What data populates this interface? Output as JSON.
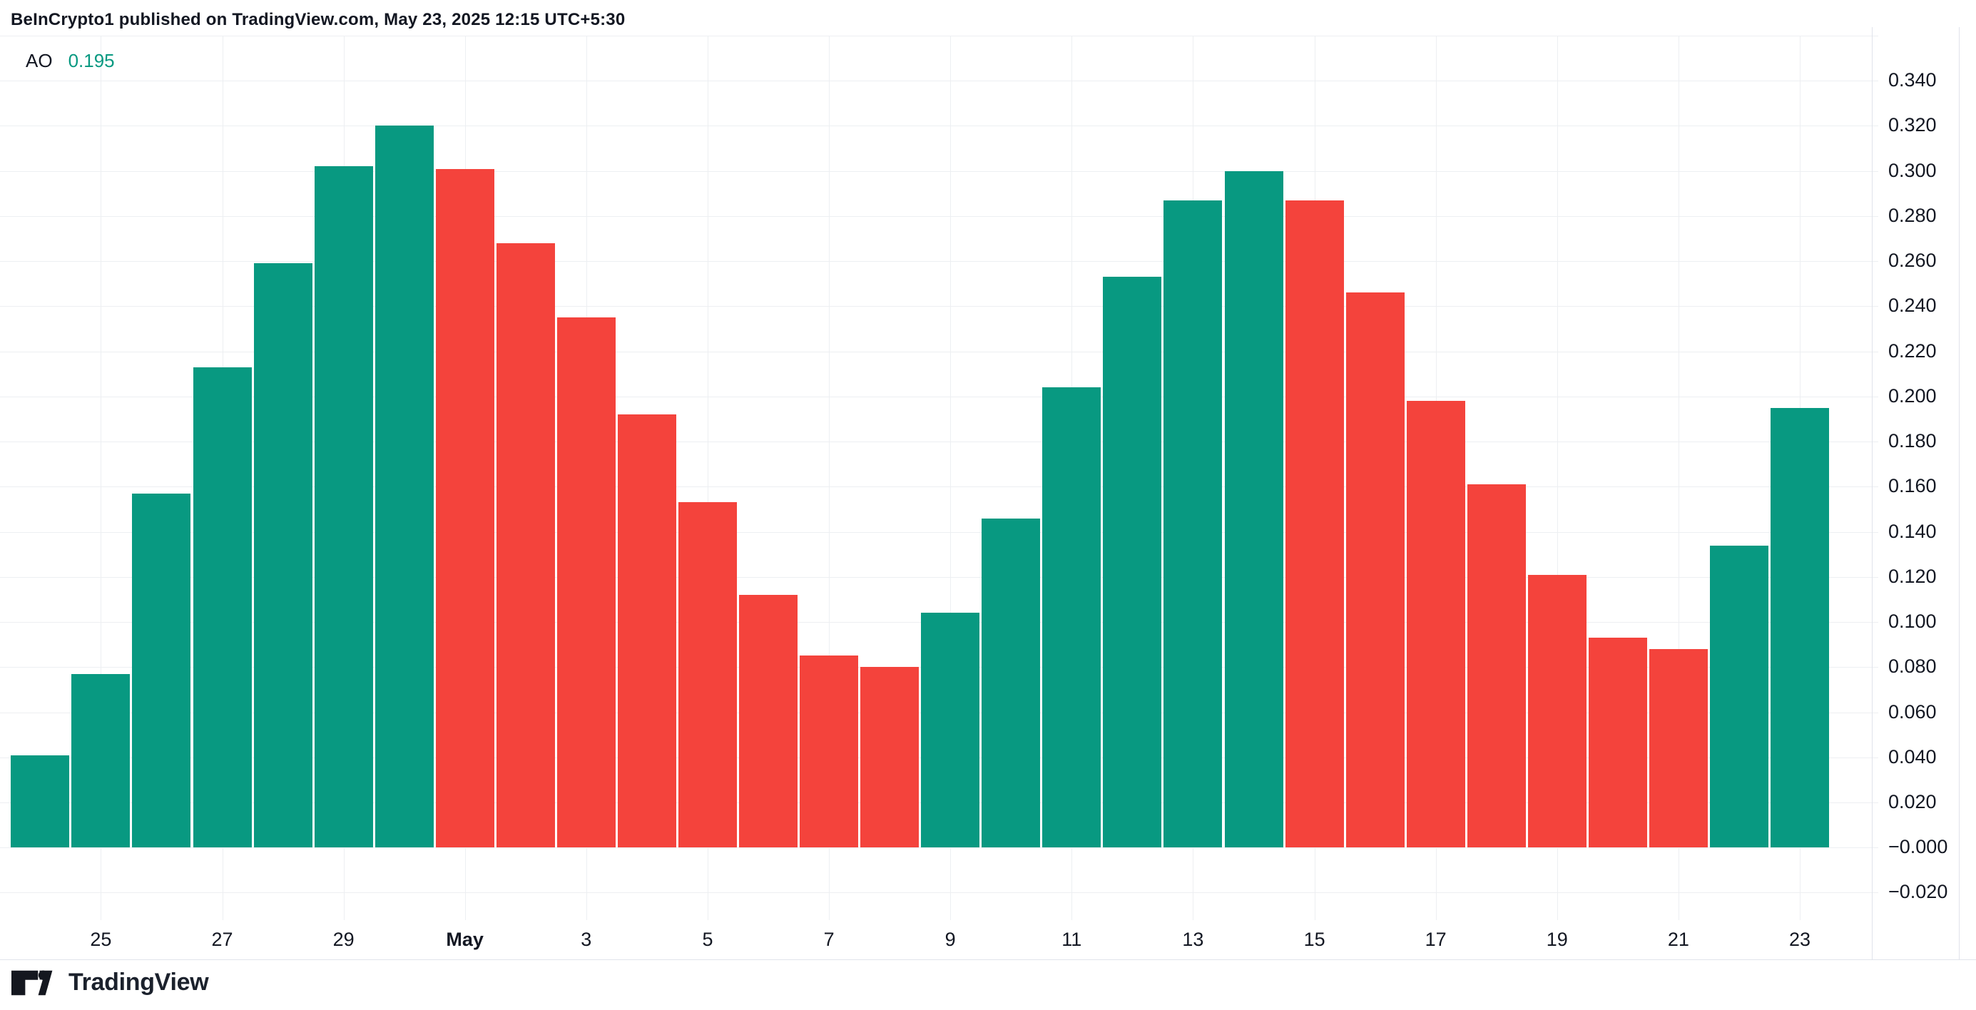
{
  "header": {
    "title": "BeInCrypto1 published on TradingView.com, May 23, 2025 12:15 UTC+5:30"
  },
  "legend": {
    "indicator": "AO",
    "value": "0.195"
  },
  "footer": {
    "brand": "TradingView"
  },
  "colors": {
    "background": "#ffffff",
    "up": "#089981",
    "down": "#f4433c",
    "grid": "#edeff2",
    "border": "#e0e3eb",
    "text": "#131722",
    "legend_value": "#089981"
  },
  "chart_data": {
    "type": "bar",
    "title": "AO (Awesome Oscillator)",
    "x": [
      "Apr 24",
      "Apr 25",
      "Apr 26",
      "Apr 27",
      "Apr 28",
      "Apr 29",
      "Apr 30",
      "May 1",
      "May 2",
      "May 3",
      "May 4",
      "May 5",
      "May 6",
      "May 7",
      "May 8",
      "May 9",
      "May 10",
      "May 11",
      "May 12",
      "May 13",
      "May 14",
      "May 15",
      "May 16",
      "May 17",
      "May 18",
      "May 19",
      "May 20",
      "May 21",
      "May 22",
      "May 23"
    ],
    "values": [
      0.041,
      0.077,
      0.157,
      0.213,
      0.259,
      0.302,
      0.32,
      0.301,
      0.268,
      0.235,
      0.192,
      0.153,
      0.112,
      0.085,
      0.08,
      0.104,
      0.146,
      0.204,
      0.253,
      0.287,
      0.3,
      0.287,
      0.246,
      0.198,
      0.161,
      0.121,
      0.093,
      0.088,
      0.134,
      0.195
    ],
    "bar_states": [
      "up",
      "up",
      "up",
      "up",
      "up",
      "up",
      "up",
      "down",
      "down",
      "down",
      "down",
      "down",
      "down",
      "down",
      "down",
      "up",
      "up",
      "up",
      "up",
      "up",
      "up",
      "down",
      "down",
      "down",
      "down",
      "down",
      "down",
      "down",
      "up",
      "up"
    ],
    "x_tick_labels": [
      "25",
      "27",
      "29",
      "May",
      "3",
      "5",
      "7",
      "9",
      "11",
      "13",
      "15",
      "17",
      "19",
      "21",
      "23"
    ],
    "x_tick_bold": "May",
    "y_tick_labels": [
      "0.340",
      "0.320",
      "0.300",
      "0.280",
      "0.260",
      "0.240",
      "0.220",
      "0.200",
      "0.180",
      "0.160",
      "0.140",
      "0.120",
      "0.100",
      "0.080",
      "0.060",
      "0.040",
      "0.020",
      "−0.000",
      "−0.020"
    ],
    "y_tick_step": 0.02,
    "y_tick_max": 0.34,
    "ylim": [
      -0.045,
      0.365
    ],
    "xlabel": "",
    "ylabel": "",
    "grid": true,
    "legend_position": "top-left"
  }
}
